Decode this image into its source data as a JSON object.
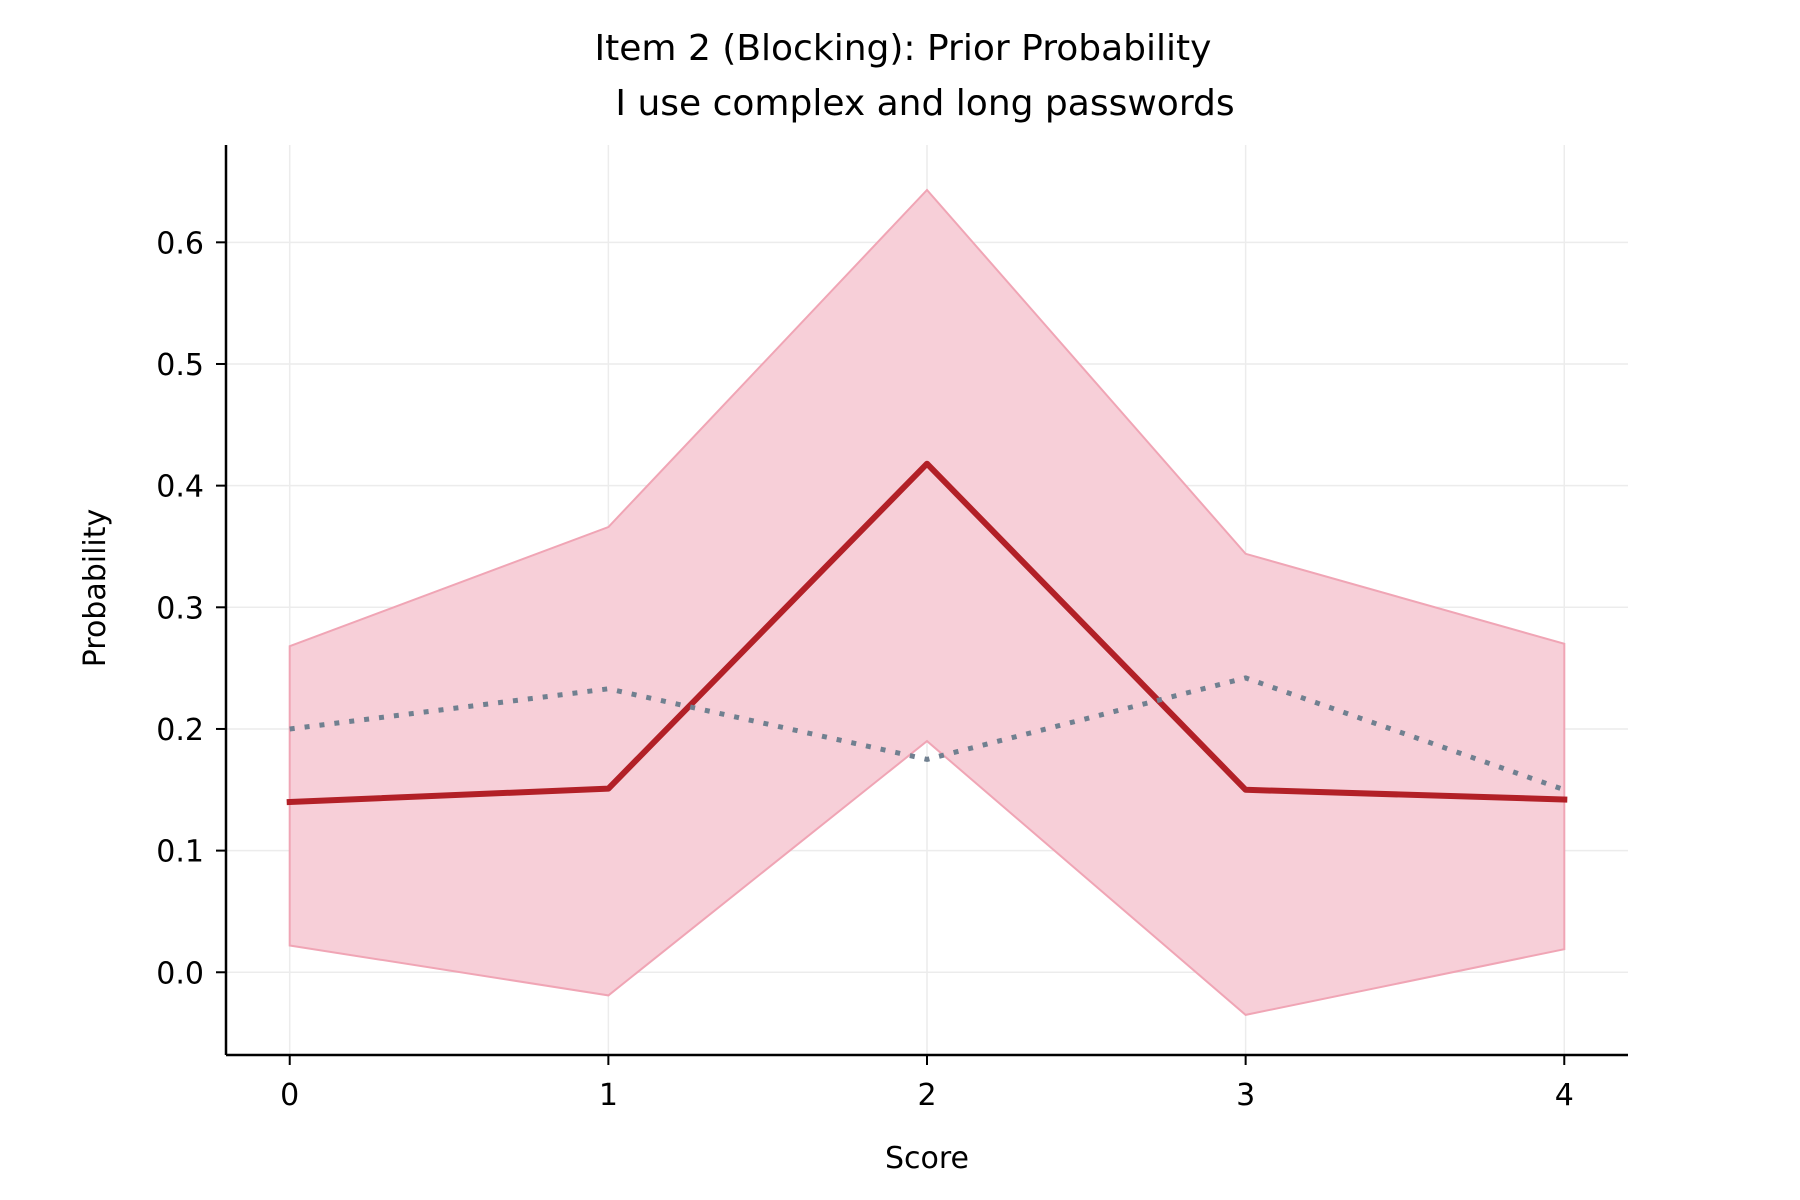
{
  "chart_data": {
    "type": "line",
    "title": "Item 2 (Blocking): Prior Probability",
    "subtitle": "I use complex and long passwords",
    "xlabel": "Score",
    "ylabel": "Probability",
    "x": [
      0,
      1,
      2,
      3,
      4
    ],
    "xlim": [
      -0.2,
      4.2
    ],
    "ylim": [
      -0.068,
      0.68
    ],
    "xticks": [
      "0",
      "1",
      "2",
      "3",
      "4"
    ],
    "yticks": [
      "0.0",
      "0.1",
      "0.2",
      "0.3",
      "0.4",
      "0.5",
      "0.6"
    ],
    "grid": true,
    "legend": "none",
    "band": {
      "lower": [
        0.022,
        -0.019,
        0.19,
        -0.035,
        0.019
      ],
      "upper": [
        0.268,
        0.366,
        0.643,
        0.344,
        0.27
      ],
      "fill_color": "#f7cfd8",
      "edge_color": "#f0a5b5"
    },
    "series": [
      {
        "values": [
          0.14,
          0.151,
          0.418,
          0.15,
          0.142
        ],
        "color": "#b22027",
        "style": "solid"
      },
      {
        "values": [
          0.2,
          0.233,
          0.175,
          0.242,
          0.15
        ],
        "color": "#708090",
        "style": "dotted"
      }
    ]
  }
}
